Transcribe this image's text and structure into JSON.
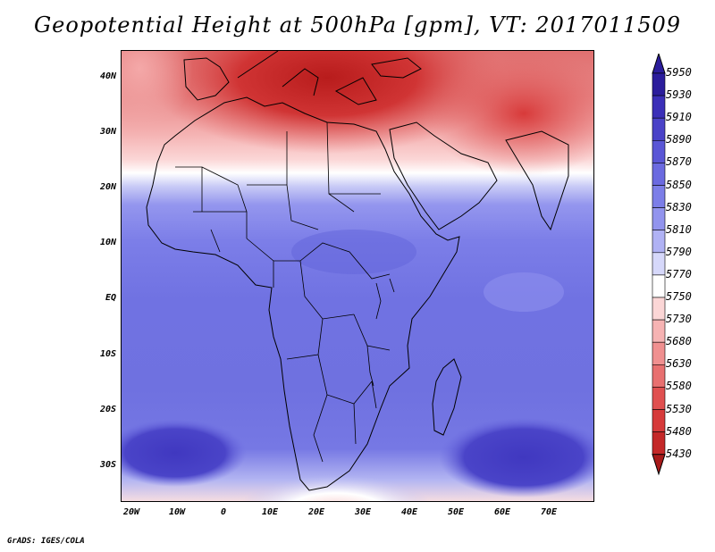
{
  "title": "Geopotential Height at 500hPa [gpm], VT: 2017011509",
  "lat_ticks": [
    "40N",
    "30N",
    "20N",
    "10N",
    "EQ",
    "10S",
    "20S",
    "30S"
  ],
  "lon_ticks": [
    "20W",
    "10W",
    "0",
    "10E",
    "20E",
    "30E",
    "40E",
    "50E",
    "60E",
    "70E"
  ],
  "colorbar": {
    "levels": [
      "5950",
      "5930",
      "5910",
      "5890",
      "5870",
      "5850",
      "5830",
      "5810",
      "5790",
      "5770",
      "5750",
      "5730",
      "5680",
      "5630",
      "5580",
      "5530",
      "5480",
      "5430"
    ],
    "colors": [
      "#2b1d9c",
      "#3b2fb8",
      "#4a42c8",
      "#5a56d6",
      "#6b6ae0",
      "#7c7ee8",
      "#9294ee",
      "#b0b2f4",
      "#d6d8fa",
      "#ffffff",
      "#fbd6d6",
      "#f6b3b3",
      "#f09090",
      "#e87070",
      "#e05050",
      "#d63a3a",
      "#c42828",
      "#a81a1a"
    ]
  },
  "map": {
    "projection": "lat-lon",
    "lon_range": [
      -22,
      80
    ],
    "lat_range": [
      -37,
      45
    ],
    "variable": "500hPa geopotential height",
    "units": "gpm"
  },
  "credit": "GrADS: IGES/COLA"
}
